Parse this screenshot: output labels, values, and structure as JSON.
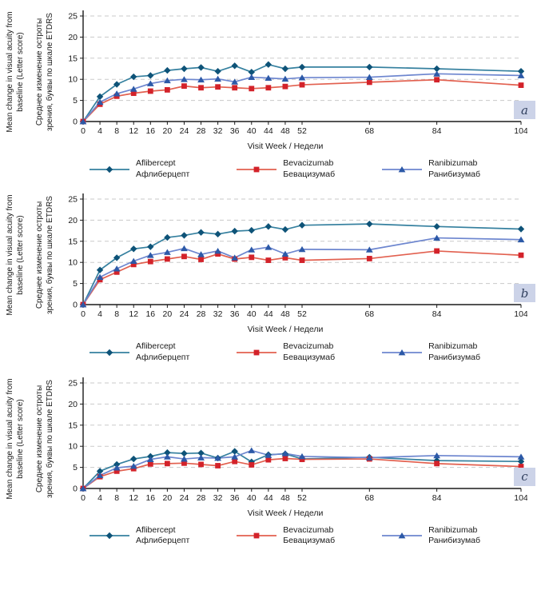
{
  "figure": {
    "description": "Mean change in visual acuity from baseline over visit weeks, three treatment arms, three panels",
    "panel_letters": [
      "a",
      "b",
      "c"
    ]
  },
  "style": {
    "grid_color": "#cacaca",
    "axis_color": "#1a1a1a",
    "badge_bg": "#ccd3e8",
    "badge_text": "#31405f"
  },
  "chart_data": [
    {
      "type": "line",
      "panel_label": "a",
      "xlabel": "Visit Week / Недели",
      "ylabel_en": "Mean change in visual acuity from\nbaseline (Letter score)",
      "ylabel_ru": "Среднее изменение остроты\nзрения, буквы по шкале ETDRS",
      "ylim": [
        0,
        25
      ],
      "yticks": [
        0,
        5,
        10,
        15,
        20,
        25
      ],
      "grid": "horizontal-dashed",
      "legend_position": "bottom",
      "x": [
        0,
        4,
        8,
        12,
        16,
        20,
        24,
        28,
        32,
        36,
        40,
        44,
        48,
        52,
        68,
        84,
        104
      ],
      "series": [
        {
          "name_en": "Aflibercept",
          "name_ru": "Афлиберцепт",
          "marker": "diamond",
          "line_color": "#35809f",
          "marker_color": "#0e5378",
          "values": [
            0,
            5.9,
            8.8,
            10.6,
            10.9,
            12.1,
            12.5,
            12.8,
            11.9,
            13.2,
            11.7,
            13.5,
            12.5,
            12.9,
            12.9,
            12.5,
            11.9
          ]
        },
        {
          "name_en": "Bevacizumab",
          "name_ru": "Бевацизумаб",
          "marker": "square",
          "line_color": "#e2604f",
          "marker_color": "#d3222a",
          "values": [
            0,
            4.1,
            6.0,
            6.7,
            7.2,
            7.5,
            8.4,
            8.0,
            8.2,
            8.0,
            7.8,
            8.0,
            8.3,
            8.7,
            9.3,
            9.9,
            8.6
          ]
        },
        {
          "name_en": "Ranibizumab",
          "name_ru": "Ранибизумаб",
          "marker": "triangle",
          "line_color": "#6d86cf",
          "marker_color": "#2c59a7",
          "values": [
            0,
            4.6,
            6.6,
            7.7,
            9.0,
            9.7,
            10.0,
            9.9,
            10.1,
            9.4,
            10.5,
            10.3,
            10.1,
            10.4,
            10.5,
            11.3,
            10.9
          ]
        }
      ]
    },
    {
      "type": "line",
      "panel_label": "b",
      "xlabel": "Visit Week / Недели",
      "ylabel_en": "Mean change in visual acuity from\nbaseline (Letter score)",
      "ylabel_ru": "Среднее изменение остроты\nзрения, буквы по шкале ETDRS",
      "ylim": [
        0,
        25
      ],
      "yticks": [
        0,
        5,
        10,
        15,
        20,
        25
      ],
      "grid": "horizontal-dashed",
      "legend_position": "bottom",
      "x": [
        0,
        4,
        8,
        12,
        16,
        20,
        24,
        28,
        32,
        36,
        40,
        44,
        48,
        52,
        68,
        84,
        104
      ],
      "series": [
        {
          "name_en": "Aflibercept",
          "name_ru": "Афлиберцепт",
          "marker": "diamond",
          "line_color": "#35809f",
          "marker_color": "#0e5378",
          "values": [
            0,
            8.2,
            11.1,
            13.2,
            13.7,
            15.9,
            16.4,
            17.1,
            16.7,
            17.4,
            17.6,
            18.5,
            17.8,
            18.8,
            19.1,
            18.5,
            17.9
          ]
        },
        {
          "name_en": "Bevacizumab",
          "name_ru": "Бевацизумаб",
          "marker": "square",
          "line_color": "#e2604f",
          "marker_color": "#d3222a",
          "values": [
            0,
            5.9,
            7.7,
            9.5,
            10.2,
            10.8,
            11.4,
            10.7,
            12.0,
            10.8,
            11.2,
            10.5,
            11.1,
            10.5,
            10.9,
            12.7,
            11.7
          ]
        },
        {
          "name_en": "Ranibizumab",
          "name_ru": "Ранибизумаб",
          "marker": "triangle",
          "line_color": "#6d86cf",
          "marker_color": "#2c59a7",
          "values": [
            0,
            6.5,
            8.5,
            10.3,
            11.7,
            12.4,
            13.3,
            11.9,
            12.7,
            11.1,
            13.0,
            13.6,
            12.0,
            13.1,
            13.0,
            15.8,
            15.4
          ]
        }
      ]
    },
    {
      "type": "line",
      "panel_label": "c",
      "xlabel": "Visit Week / Недели",
      "ylabel_en": "Mean change in visual acuity from\nbaseline (Letter score)",
      "ylabel_ru": "Среднее изменение остроты\nзрения, буквы по шкале ETDRS",
      "ylim": [
        0,
        25
      ],
      "yticks": [
        0,
        5,
        10,
        15,
        20,
        25
      ],
      "grid": "horizontal-dashed",
      "legend_position": "bottom",
      "x": [
        0,
        4,
        8,
        12,
        16,
        20,
        24,
        28,
        32,
        36,
        40,
        44,
        48,
        52,
        68,
        84,
        104
      ],
      "series": [
        {
          "name_en": "Aflibercept",
          "name_ru": "Афлиберцепт",
          "marker": "diamond",
          "line_color": "#35809f",
          "marker_color": "#0e5378",
          "values": [
            0,
            4.1,
            5.7,
            7.0,
            7.6,
            8.5,
            8.3,
            8.4,
            7.2,
            8.8,
            6.3,
            8.0,
            8.2,
            7.0,
            7.4,
            6.6,
            6.4
          ]
        },
        {
          "name_en": "Bevacizumab",
          "name_ru": "Бевацизумаб",
          "marker": "square",
          "line_color": "#e2604f",
          "marker_color": "#d3222a",
          "values": [
            0,
            2.8,
            4.1,
            4.7,
            5.8,
            5.9,
            6.0,
            5.7,
            5.4,
            6.4,
            5.6,
            6.8,
            7.1,
            6.9,
            7.0,
            5.9,
            5.2
          ]
        },
        {
          "name_en": "Ranibizumab",
          "name_ru": "Ранибизумаб",
          "marker": "triangle",
          "line_color": "#6d86cf",
          "marker_color": "#2c59a7",
          "values": [
            0,
            3.1,
            4.9,
            5.3,
            6.9,
            7.5,
            7.0,
            7.3,
            7.2,
            7.5,
            9.0,
            7.9,
            8.3,
            7.6,
            7.3,
            7.8,
            7.5
          ]
        }
      ]
    }
  ]
}
